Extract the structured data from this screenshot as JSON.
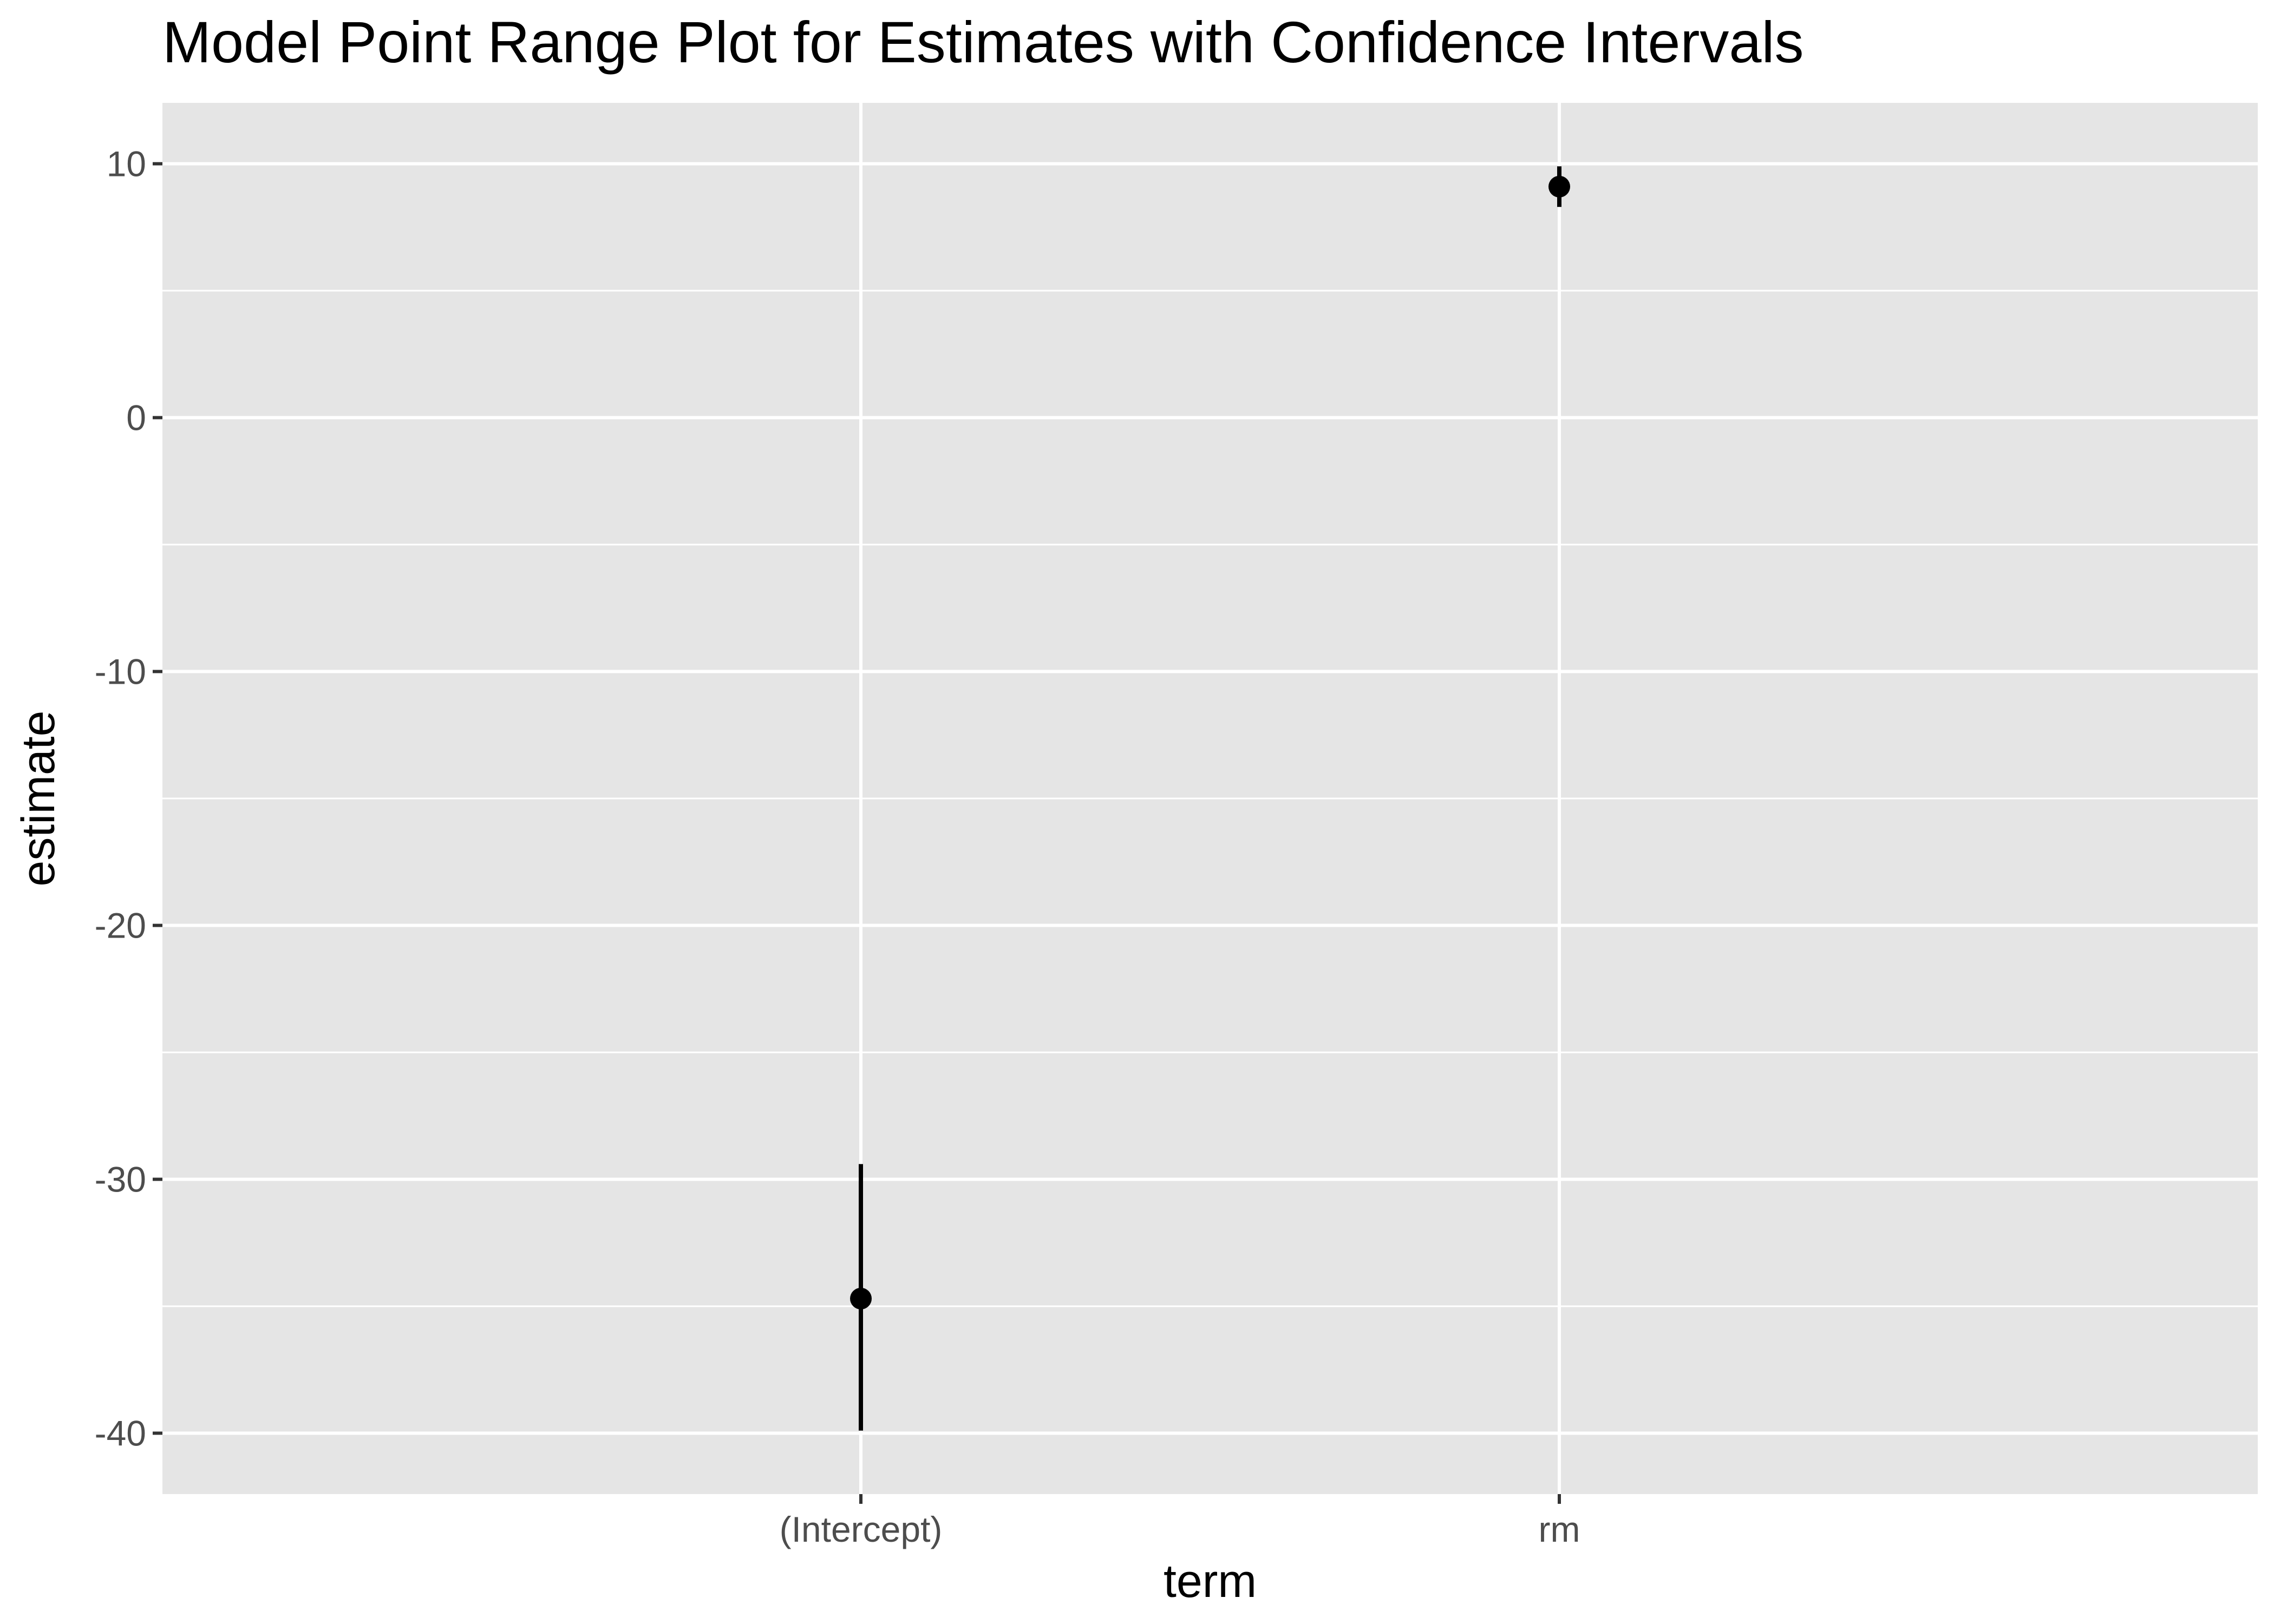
{
  "chart_data": {
    "type": "pointrange",
    "title": "Model Point Range Plot for Estimates with Confidence Intervals",
    "xlabel": "term",
    "ylabel": "estimate",
    "categories": [
      "(Intercept)",
      "rm"
    ],
    "points": [
      {
        "term": "(Intercept)",
        "estimate": -34.7,
        "conf_low": -39.9,
        "conf_high": -29.4
      },
      {
        "term": "rm",
        "estimate": 9.1,
        "conf_low": 8.3,
        "conf_high": 9.9
      }
    ],
    "ylim": [
      -42.4,
      12.4
    ],
    "yticks": [
      10,
      0,
      -10,
      -20,
      -30,
      -40
    ],
    "ytick_labels": [
      "10",
      "0",
      "-10",
      "-20",
      "-30",
      "-40"
    ],
    "grid": true,
    "colors": {
      "panel_background": "#e5e5e5",
      "grid_line": "#ffffff",
      "point": "#000000",
      "tick": "#333333",
      "tick_label": "#4d4d4d"
    }
  }
}
